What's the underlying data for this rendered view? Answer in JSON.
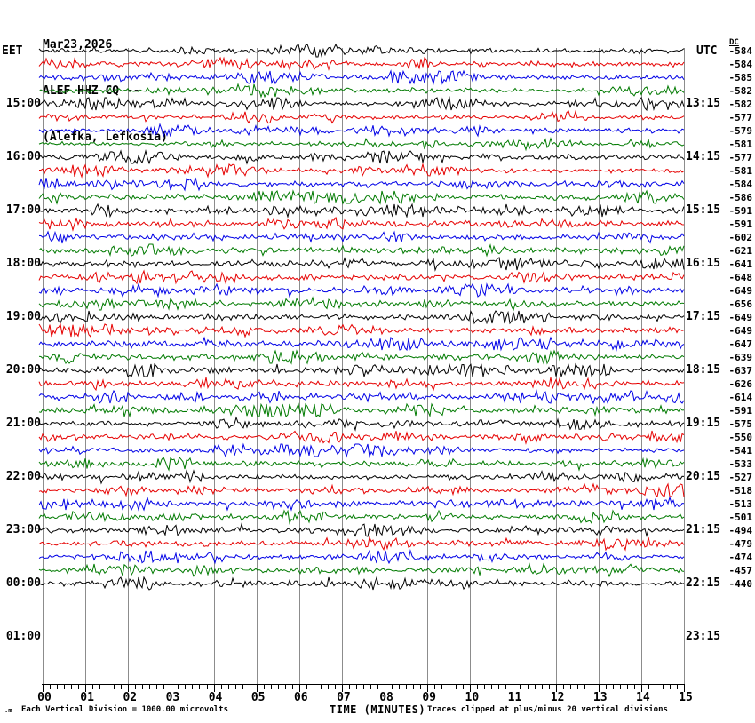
{
  "chart_data": {
    "type": "line",
    "subtype": "helicorder-seismogram",
    "date": "Mar23,2026",
    "title": "ALEF HHZ CQ --",
    "station": "(Alefka, Lefkosia)",
    "left_axis_label": "EET",
    "right_axis_label": "UTC",
    "dc_column_label": "DC",
    "xlabel": "TIME (MINUTES)",
    "footer_left": "Each Vertical Division = 1000.00 microvolts",
    "footer_right": "Traces clipped at plus/minus 20 vertical divisions",
    "watermark": ".m",
    "xlim_minutes": [
      0,
      15
    ],
    "x_ticks": [
      "00",
      "01",
      "02",
      "03",
      "04",
      "05",
      "06",
      "07",
      "08",
      "09",
      "10",
      "11",
      "12",
      "13",
      "14",
      "15"
    ],
    "x_minor_ticks_per_minute": 6,
    "minutes_per_line": 15,
    "lines_per_hour": 4,
    "num_traces": 41,
    "color_cycle": [
      "black",
      "red",
      "blue",
      "green"
    ],
    "colors": {
      "black": "#000000",
      "red": "#e60000",
      "blue": "#0000e6",
      "green": "#007a00",
      "grid": "#8c8c8c",
      "text": "#000000"
    },
    "left_hour_labels": [
      {
        "row": 4,
        "label": "15:00"
      },
      {
        "row": 8,
        "label": "16:00"
      },
      {
        "row": 12,
        "label": "17:00"
      },
      {
        "row": 16,
        "label": "18:00"
      },
      {
        "row": 20,
        "label": "19:00"
      },
      {
        "row": 24,
        "label": "20:00"
      },
      {
        "row": 28,
        "label": "21:00"
      },
      {
        "row": 32,
        "label": "22:00"
      },
      {
        "row": 36,
        "label": "23:00"
      },
      {
        "row": 40,
        "label": "00:00"
      },
      {
        "row": 44,
        "label": "01:00"
      }
    ],
    "right_hour_labels": [
      {
        "row": 4,
        "label": "13:15"
      },
      {
        "row": 8,
        "label": "14:15"
      },
      {
        "row": 12,
        "label": "15:15"
      },
      {
        "row": 16,
        "label": "16:15"
      },
      {
        "row": 20,
        "label": "17:15"
      },
      {
        "row": 24,
        "label": "18:15"
      },
      {
        "row": 28,
        "label": "19:15"
      },
      {
        "row": 32,
        "label": "20:15"
      },
      {
        "row": 36,
        "label": "21:15"
      },
      {
        "row": 40,
        "label": "22:15"
      },
      {
        "row": 44,
        "label": "23:15"
      }
    ],
    "dc_offsets": [
      -584,
      -584,
      -585,
      -582,
      -582,
      -577,
      -579,
      -581,
      -577,
      -581,
      -584,
      -586,
      -591,
      -591,
      -602,
      -621,
      -641,
      -648,
      -649,
      -656,
      -649,
      -649,
      -647,
      -639,
      -637,
      -626,
      -614,
      -591,
      -575,
      -550,
      -541,
      -533,
      -527,
      -518,
      -513,
      -501,
      -494,
      -479,
      -474,
      -457,
      -440
    ],
    "events": [
      {
        "row": 11,
        "minute": 7.92,
        "amp": 11,
        "width": 5
      },
      {
        "row": 12,
        "minute": 8.05,
        "amp": 3.5,
        "width": 28
      },
      {
        "row": 17,
        "minute": 2.2,
        "amp": 3.5,
        "width": 12
      },
      {
        "row": 24,
        "minute": 2.5,
        "amp": 5,
        "width": 8
      },
      {
        "row": 25,
        "minute": 1.3,
        "amp": 5,
        "width": 10
      },
      {
        "row": 26,
        "minute": 1.75,
        "amp": 4.5,
        "width": 8
      }
    ]
  }
}
